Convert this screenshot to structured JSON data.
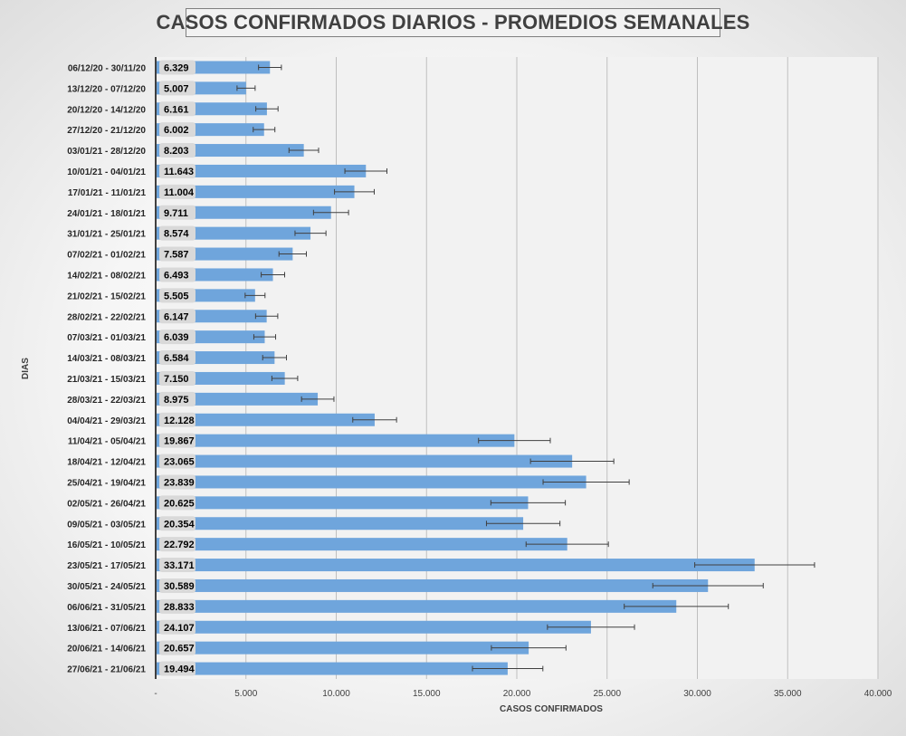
{
  "chart_data": {
    "type": "bar",
    "orientation": "horizontal",
    "title": "CASOS CONFIRMADOS DIARIOS - PROMEDIOS SEMANALES",
    "xlabel": "CASOS CONFIRMADOS",
    "ylabel": "DIAS",
    "xlim": [
      0,
      40000
    ],
    "x_ticks": [
      "-",
      "5.000",
      "10.000",
      "15.000",
      "20.000",
      "25.000",
      "30.000",
      "35.000",
      "40.000"
    ],
    "grid": "vertical",
    "error_bars": true,
    "colors": {
      "bar": "#6fa5dc",
      "plot_bg": "#f2f2f2",
      "label_bg": "#d9d9d9",
      "grid": "#bfbfbf",
      "error": "#404040"
    },
    "categories": [
      "06/12/20 - 30/11/20",
      "13/12/20 - 07/12/20",
      "20/12/20 - 14/12/20",
      "27/12/20 - 21/12/20",
      "03/01/21 - 28/12/20",
      "10/01/21 - 04/01/21",
      "17/01/21 - 11/01/21",
      "24/01/21 - 18/01/21",
      "31/01/21 - 25/01/21",
      "07/02/21 - 01/02/21",
      "14/02/21 - 08/02/21",
      "21/02/21 - 15/02/21",
      "28/02/21 - 22/02/21",
      "07/03/21 - 01/03/21",
      "14/03/21 - 08/03/21",
      "21/03/21 - 15/03/21",
      "28/03/21 - 22/03/21",
      "04/04/21 - 29/03/21",
      "11/04/21 - 05/04/21",
      "18/04/21 - 12/04/21",
      "25/04/21 - 19/04/21",
      "02/05/21 - 26/04/21",
      "09/05/21 - 03/05/21",
      "16/05/21 - 10/05/21",
      "23/05/21 - 17/05/21",
      "30/05/21 - 24/05/21",
      "06/06/21 - 31/05/21",
      "13/06/21 - 07/06/21",
      "20/06/21 - 14/06/21",
      "27/06/21 - 21/06/21"
    ],
    "values": [
      6329,
      5007,
      6161,
      6002,
      8203,
      11643,
      11004,
      9711,
      8574,
      7587,
      6493,
      5505,
      6147,
      6039,
      6584,
      7150,
      8975,
      12128,
      19867,
      23065,
      23839,
      20625,
      20354,
      22792,
      33171,
      30589,
      28833,
      24107,
      20657,
      19494
    ],
    "value_labels": [
      "6.329",
      "5.007",
      "6.161",
      "6.002",
      "8.203",
      "11.643",
      "11.004",
      "9.711",
      "8.574",
      "7.587",
      "6.493",
      "5.505",
      "6.147",
      "6.039",
      "6.584",
      "7.150",
      "8.975",
      "12.128",
      "19.867",
      "23.065",
      "23.839",
      "20.625",
      "20.354",
      "22.792",
      "33.171",
      "30.589",
      "28.833",
      "24.107",
      "20.657",
      "19.494"
    ],
    "error_percent": 10
  }
}
